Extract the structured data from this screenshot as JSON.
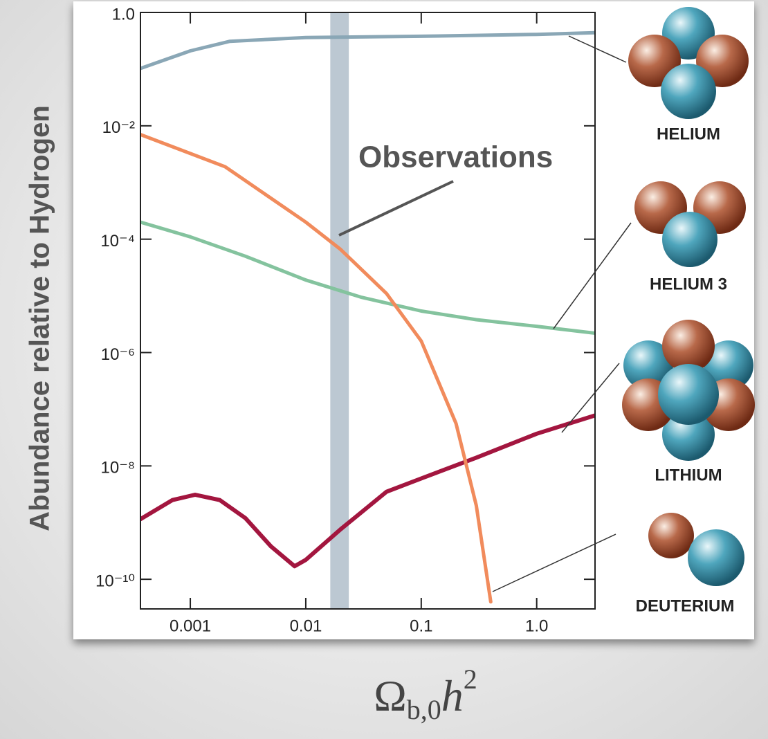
{
  "chart_data": {
    "type": "line",
    "y_label": "Abundance relative to Hydrogen",
    "x_label": "Ωb,0h2",
    "annotation": "Observations",
    "observation_band": [
      0.0163,
      0.0236
    ],
    "xlog": true,
    "ylog": true,
    "xlim": [
      0.00037,
      3.2
    ],
    "ylim": [
      3e-11,
      1
    ],
    "xticks": [
      0.001,
      0.01,
      0.1,
      {
        "value": 1,
        "label": "1.0"
      }
    ],
    "yticks": [
      {
        "value": 1,
        "label": "1.0"
      },
      {
        "value": 0.01,
        "label": "10⁻²"
      },
      {
        "value": 0.0001,
        "label": "10⁻⁴"
      },
      {
        "value": 1e-06,
        "label": "10⁻⁶"
      },
      {
        "value": 1e-08,
        "label": "10⁻⁸"
      },
      {
        "value": 1e-10,
        "label": "10⁻¹⁰"
      }
    ],
    "series": [
      {
        "name": "HELIUM",
        "color": "#8aa7b6",
        "x": [
          0.00037,
          0.001,
          0.0022,
          0.01,
          0.1,
          1,
          3.2
        ],
        "values": [
          0.103,
          0.21,
          0.31,
          0.36,
          0.38,
          0.41,
          0.44
        ]
      },
      {
        "name": "HELIUM 3",
        "color": "#84c39e",
        "x": [
          0.00037,
          0.001,
          0.003,
          0.01,
          0.03,
          0.1,
          0.3,
          1,
          3.2
        ],
        "values": [
          0.0002,
          0.00011,
          5e-05,
          1.9e-05,
          9.5e-06,
          5.4e-06,
          3.8e-06,
          2.9e-06,
          2.2e-06
        ]
      },
      {
        "name": "LITHIUM",
        "color": "#a3163f",
        "x": [
          0.00037,
          0.0007,
          0.0011,
          0.0018,
          0.003,
          0.005,
          0.008,
          0.01,
          0.02,
          0.05,
          0.1,
          0.3,
          1,
          3.2
        ],
        "values": [
          1.15e-09,
          2.5e-09,
          3.1e-09,
          2.5e-09,
          1.2e-09,
          3.8e-10,
          1.7e-10,
          2.2e-10,
          7.6e-10,
          3.5e-09,
          6e-09,
          1.4e-08,
          3.7e-08,
          7.8e-08
        ]
      },
      {
        "name": "DEUTERIUM",
        "color": "#f18b5c",
        "x": [
          0.00037,
          0.002,
          0.01,
          0.02,
          0.05,
          0.1,
          0.2,
          0.3,
          0.4
        ],
        "values": [
          0.007,
          0.0019,
          0.0002,
          6.6e-05,
          1.1e-05,
          1.6e-06,
          5.6e-08,
          2e-09,
          4e-11
        ]
      }
    ]
  }
}
